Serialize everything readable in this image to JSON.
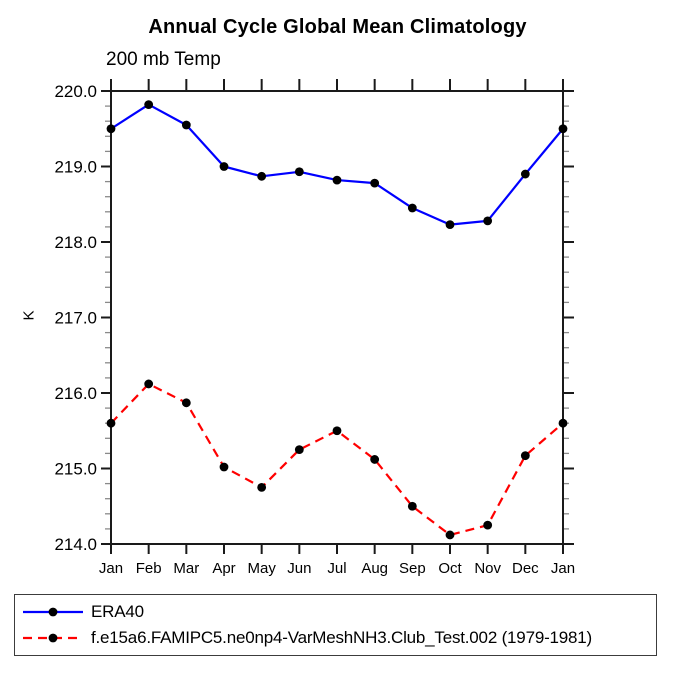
{
  "figure": {
    "title": "Annual Cycle Global Mean Climatology",
    "subtitle": "200 mb Temp",
    "ylabel": "K"
  },
  "chart_data": {
    "type": "line",
    "title": "Annual Cycle Global Mean Climatology",
    "subtitle": "200 mb Temp",
    "xlabel": "",
    "ylabel": "K",
    "categories": [
      "Jan",
      "Feb",
      "Mar",
      "Apr",
      "May",
      "Jun",
      "Jul",
      "Aug",
      "Sep",
      "Oct",
      "Nov",
      "Dec",
      "Jan"
    ],
    "series": [
      {
        "name": "ERA40",
        "line_style": "solid",
        "color": "#0000ff",
        "marker": "filled-circle",
        "marker_color": "#000000",
        "values": [
          219.5,
          219.82,
          219.55,
          219.0,
          218.87,
          218.93,
          218.82,
          218.78,
          218.45,
          218.23,
          218.28,
          218.9,
          219.5
        ]
      },
      {
        "name": "f.e15a6.FAMIPC5.ne0np4-VarMeshNH3.Club_Test.002 (1979-1981)",
        "line_style": "dashed",
        "color": "#ff0000",
        "marker": "filled-circle",
        "marker_color": "#000000",
        "values": [
          215.6,
          216.12,
          215.87,
          215.02,
          214.75,
          215.25,
          215.5,
          215.12,
          214.5,
          214.12,
          214.25,
          215.17,
          215.6
        ]
      }
    ],
    "ylim": [
      214.0,
      220.0
    ],
    "yticks": [
      214.0,
      215.0,
      216.0,
      217.0,
      218.0,
      219.0,
      220.0
    ],
    "ytick_format_decimals": 1,
    "y_minor_step": 0.2,
    "grid": false,
    "legend_position": "below-left"
  },
  "colors": {
    "axis": "#1a1a1a",
    "minor_tick": "#8a8a8a",
    "text": "#000000",
    "background": "#ffffff"
  }
}
